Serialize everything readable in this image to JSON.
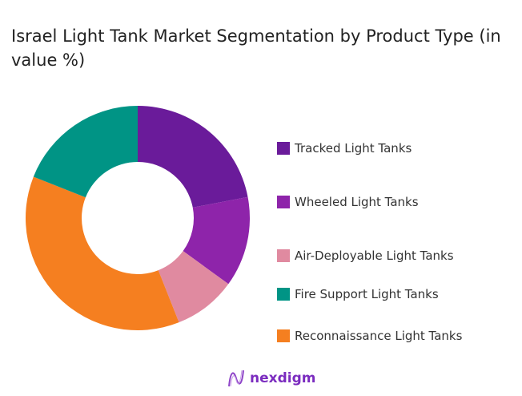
{
  "chart_data": {
    "type": "pie",
    "title": "Israel Light Tank Market Segmentation by Product Type (in value %)",
    "categories": [
      "Tracked Light Tanks",
      "Wheeled Light Tanks",
      "Air-Deployable Light Tanks",
      "Reconnaissance Light Tanks",
      "Fire Support Light Tanks"
    ],
    "values": [
      22,
      13,
      9,
      37,
      19
    ],
    "colors": [
      "#6a1b9a",
      "#8e24aa",
      "#e08aa0",
      "#f57f20",
      "#009485"
    ],
    "donut": true,
    "legend_position": "right",
    "legend_order": [
      0,
      1,
      2,
      4,
      3
    ]
  },
  "logo": {
    "text": "nexdigm"
  }
}
